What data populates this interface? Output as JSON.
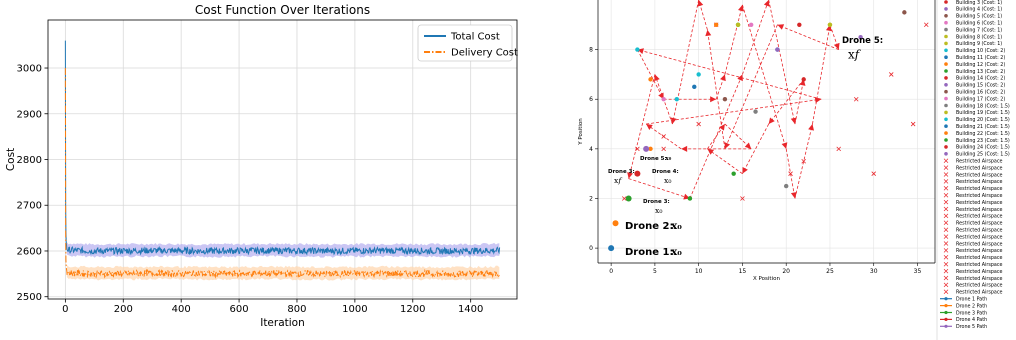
{
  "chart_data": [
    {
      "type": "line",
      "title": "Cost Function Over Iterations",
      "xlabel": "Iteration",
      "ylabel": "Cost",
      "xlim": [
        -60,
        1560
      ],
      "ylim": [
        2495,
        3105
      ],
      "xticks": [
        0,
        200,
        400,
        600,
        800,
        1000,
        1200,
        1400
      ],
      "yticks": [
        2500,
        2600,
        2700,
        2800,
        2900,
        3000
      ],
      "grid": true,
      "legend_position": "top-right",
      "series": [
        {
          "name": "Total Cost",
          "color": "#1f77b4",
          "band_color": "#b9b3f0",
          "style": "solid",
          "x": [
            0,
            1,
            2,
            3,
            5,
            10,
            50,
            100,
            300,
            500,
            700,
            900,
            1100,
            1300,
            1500
          ],
          "values": [
            3060,
            2700,
            2640,
            2620,
            2605,
            2602,
            2601,
            2600,
            2601,
            2600,
            2601,
            2600,
            2601,
            2600,
            2601
          ]
        },
        {
          "name": "Delivery Cost",
          "color": "#ff7f0e",
          "band_color": "#ffd7b0",
          "style": "dashdot",
          "x": [
            0,
            1,
            2,
            3,
            5,
            10,
            50,
            100,
            300,
            500,
            700,
            900,
            1100,
            1300,
            1500
          ],
          "values": [
            3000,
            2640,
            2580,
            2565,
            2555,
            2552,
            2551,
            2550,
            2551,
            2550,
            2551,
            2550,
            2551,
            2550,
            2551
          ]
        }
      ]
    },
    {
      "type": "scatter",
      "title": "",
      "xlabel": "X Position",
      "ylabel": "Y Position",
      "xlim": [
        -1.5,
        37
      ],
      "ylim": [
        -0.6,
        10.2
      ],
      "xticks": [
        0,
        5,
        10,
        15,
        20,
        25,
        30,
        35
      ],
      "yticks": [
        0,
        2,
        4,
        6,
        8
      ],
      "buildings": [
        {
          "x": 12,
          "y": 9,
          "color": "#ff7f0e"
        },
        {
          "x": 14.5,
          "y": 9,
          "color": "#2ca02c"
        },
        {
          "x": 21.5,
          "y": 9,
          "color": "#d62728"
        },
        {
          "x": 28.5,
          "y": 8.5,
          "color": "#9467bd"
        },
        {
          "x": 33.5,
          "y": 9.5,
          "color": "#8c564b"
        },
        {
          "x": 16,
          "y": 9,
          "color": "#e377c2"
        },
        {
          "x": 25,
          "y": 9,
          "color": "#bcbd22"
        },
        {
          "x": 3,
          "y": 8,
          "color": "#17becf"
        },
        {
          "x": 19,
          "y": 8,
          "color": "#1f77b4"
        },
        {
          "x": 7.5,
          "y": 6,
          "color": "#17becf"
        },
        {
          "x": 9.5,
          "y": 6.5,
          "color": "#1f77b4"
        },
        {
          "x": 4.5,
          "y": 6.8,
          "color": "#ff7f0e"
        },
        {
          "x": 9,
          "y": 2,
          "color": "#2ca02c"
        },
        {
          "x": 14,
          "y": 3,
          "color": "#2ca02c"
        },
        {
          "x": 22,
          "y": 6.8,
          "color": "#d62728"
        },
        {
          "x": 19,
          "y": 8,
          "color": "#9467bd"
        },
        {
          "x": 13,
          "y": 6,
          "color": "#8c564b"
        },
        {
          "x": 6,
          "y": 6,
          "color": "#e377c2"
        },
        {
          "x": 16.5,
          "y": 5.5,
          "color": "#7f7f7f"
        },
        {
          "x": 14.5,
          "y": 9,
          "color": "#bcbd22"
        },
        {
          "x": 10,
          "y": 7,
          "color": "#17becf"
        },
        {
          "x": 25,
          "y": 9,
          "color": "#bcbd22"
        },
        {
          "x": 4.5,
          "y": 4,
          "color": "#ff7f0e"
        },
        {
          "x": 9,
          "y": 2,
          "color": "#2ca02c"
        },
        {
          "x": 20,
          "y": 2.5,
          "color": "#7f7f7f"
        }
      ],
      "restricted": [
        [
          12,
          9
        ],
        [
          36,
          9
        ],
        [
          32,
          7
        ],
        [
          28,
          6
        ],
        [
          34.5,
          5
        ],
        [
          26,
          4
        ],
        [
          30,
          3
        ],
        [
          20.5,
          3
        ],
        [
          15,
          2
        ],
        [
          6,
          4
        ],
        [
          3,
          4
        ],
        [
          1.5,
          2
        ],
        [
          6,
          4.5
        ],
        [
          22,
          3.5
        ],
        [
          10,
          5
        ]
      ],
      "drone_starts": [
        {
          "x": 0,
          "y": 0,
          "color": "#1f77b4"
        },
        {
          "x": 0.5,
          "y": 1,
          "color": "#ff7f0e"
        },
        {
          "x": 2,
          "y": 2,
          "color": "#2ca02c"
        },
        {
          "x": 3,
          "y": 3,
          "color": "#d62728"
        },
        {
          "x": 4,
          "y": 4,
          "color": "#9467bd"
        }
      ],
      "path_points": [
        [
          4,
          5
        ],
        [
          24,
          6
        ],
        [
          3,
          8
        ],
        [
          6,
          6
        ],
        [
          12,
          6
        ],
        [
          13,
          7
        ],
        [
          15,
          9.8
        ],
        [
          20,
          4
        ],
        [
          21,
          2
        ],
        [
          23,
          5
        ],
        [
          25,
          9
        ],
        [
          26,
          8
        ],
        [
          19,
          9
        ],
        [
          13,
          4
        ],
        [
          11,
          8.8
        ],
        [
          10,
          10
        ],
        [
          7,
          5
        ],
        [
          5,
          7
        ],
        [
          2,
          2.8
        ],
        [
          9,
          2
        ],
        [
          15,
          7
        ],
        [
          18,
          10
        ],
        [
          21,
          5
        ],
        [
          22,
          6.8
        ],
        [
          18,
          5
        ],
        [
          15,
          3
        ],
        [
          11,
          4
        ],
        [
          13,
          5
        ],
        [
          16,
          4
        ],
        [
          8,
          4
        ],
        [
          4,
          5
        ]
      ],
      "annotations": [
        {
          "text": "Drone 1:",
          "math": "x0",
          "x": 0,
          "y": 0,
          "size": "large"
        },
        {
          "text": "Drone 2:",
          "math": "x0",
          "x": 0.5,
          "y": 1,
          "size": "large"
        },
        {
          "text": "Drone 3:",
          "math": "x0",
          "x": 2,
          "y": 2,
          "size": "small"
        },
        {
          "text": "Drone 3:",
          "math": "xf",
          "x": 2,
          "y": 3,
          "size": "small"
        },
        {
          "text": "Drone 4:",
          "math": "x0",
          "x": 3,
          "y": 3,
          "size": "small"
        },
        {
          "text": "Drone 5:",
          "math": "x0",
          "x": 4,
          "y": 4,
          "size": "small"
        },
        {
          "text": "Drone 5:",
          "math": "xf",
          "x": 25,
          "y": 9,
          "size": "large"
        }
      ],
      "legend": [
        "Building 3 (Cost: 1)",
        "Building 4 (Cost: 1)",
        "Building 5 (Cost: 1)",
        "Building 6 (Cost: 1)",
        "Building 7 (Cost: 1)",
        "Building 8 (Cost: 1)",
        "Building 9 (Cost: 1)",
        "Building 10 (Cost: 2)",
        "Building 11 (Cost: 2)",
        "Building 12 (Cost: 2)",
        "Building 13 (Cost: 2)",
        "Building 14 (Cost: 2)",
        "Building 15 (Cost: 2)",
        "Building 16 (Cost: 2)",
        "Building 17 (Cost: 2)",
        "Building 18 (Cost: 1.5)",
        "Building 19 (Cost: 1.5)",
        "Building 20 (Cost: 1.5)",
        "Building 21 (Cost: 1.5)",
        "Building 22 (Cost: 1.5)",
        "Building 23 (Cost: 1.5)",
        "Building 24 (Cost: 1.5)",
        "Building 25 (Cost: 1.5)",
        "Restricted Airspace",
        "Restricted Airspace",
        "Restricted Airspace",
        "Restricted Airspace",
        "Restricted Airspace",
        "Restricted Airspace",
        "Restricted Airspace",
        "Restricted Airspace",
        "Restricted Airspace",
        "Restricted Airspace",
        "Restricted Airspace",
        "Restricted Airspace",
        "Restricted Airspace",
        "Restricted Airspace",
        "Restricted Airspace",
        "Restricted Airspace",
        "Restricted Airspace",
        "Restricted Airspace",
        "Restricted Airspace",
        "Restricted Airspace",
        "Drone 1 Path",
        "Drone 2 Path",
        "Drone 3 Path",
        "Drone 4 Path",
        "Drone 5 Path"
      ],
      "legend_colors": [
        "#d62728",
        "#9467bd",
        "#8c564b",
        "#e377c2",
        "#7f7f7f",
        "#bcbd22",
        "#bcbd22",
        "#17becf",
        "#1f77b4",
        "#ff7f0e",
        "#2ca02c",
        "#d62728",
        "#9467bd",
        "#8c564b",
        "#e377c2",
        "#7f7f7f",
        "#bcbd22",
        "#17becf",
        "#1f77b4",
        "#ff7f0e",
        "#2ca02c",
        "#d62728",
        "#9467bd",
        "#1f77b4",
        "#ff7f0e",
        "#2ca02c",
        "#d62728",
        "#9467bd"
      ]
    }
  ]
}
